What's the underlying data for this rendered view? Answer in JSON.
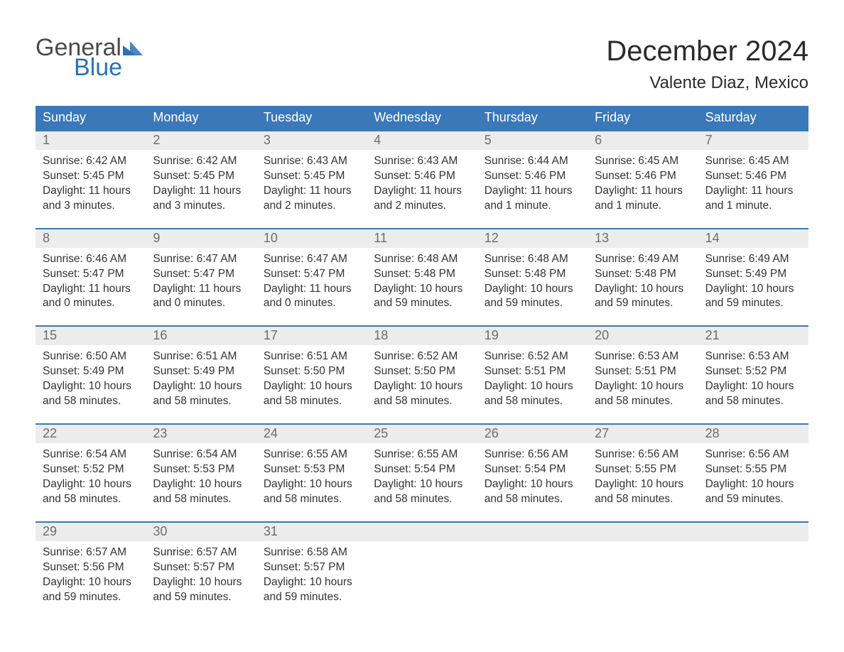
{
  "brand": {
    "line1": "General",
    "line2": "Blue",
    "triangle_color": "#2a71b8"
  },
  "title": {
    "month": "December 2024",
    "location": "Valente Diaz, Mexico"
  },
  "colors": {
    "header_bg": "#3a78b9",
    "header_text": "#ffffff",
    "daynum_bg": "#ececec",
    "daynum_text": "#6d6d6d",
    "body_text": "#333333",
    "rule": "#3a78b9",
    "page_bg": "#ffffff"
  },
  "day_headers": [
    "Sunday",
    "Monday",
    "Tuesday",
    "Wednesday",
    "Thursday",
    "Friday",
    "Saturday"
  ],
  "weeks": [
    [
      {
        "n": "1",
        "sunrise": "Sunrise: 6:42 AM",
        "sunset": "Sunset: 5:45 PM",
        "day1": "Daylight: 11 hours",
        "day2": "and 3 minutes."
      },
      {
        "n": "2",
        "sunrise": "Sunrise: 6:42 AM",
        "sunset": "Sunset: 5:45 PM",
        "day1": "Daylight: 11 hours",
        "day2": "and 3 minutes."
      },
      {
        "n": "3",
        "sunrise": "Sunrise: 6:43 AM",
        "sunset": "Sunset: 5:45 PM",
        "day1": "Daylight: 11 hours",
        "day2": "and 2 minutes."
      },
      {
        "n": "4",
        "sunrise": "Sunrise: 6:43 AM",
        "sunset": "Sunset: 5:46 PM",
        "day1": "Daylight: 11 hours",
        "day2": "and 2 minutes."
      },
      {
        "n": "5",
        "sunrise": "Sunrise: 6:44 AM",
        "sunset": "Sunset: 5:46 PM",
        "day1": "Daylight: 11 hours",
        "day2": "and 1 minute."
      },
      {
        "n": "6",
        "sunrise": "Sunrise: 6:45 AM",
        "sunset": "Sunset: 5:46 PM",
        "day1": "Daylight: 11 hours",
        "day2": "and 1 minute."
      },
      {
        "n": "7",
        "sunrise": "Sunrise: 6:45 AM",
        "sunset": "Sunset: 5:46 PM",
        "day1": "Daylight: 11 hours",
        "day2": "and 1 minute."
      }
    ],
    [
      {
        "n": "8",
        "sunrise": "Sunrise: 6:46 AM",
        "sunset": "Sunset: 5:47 PM",
        "day1": "Daylight: 11 hours",
        "day2": "and 0 minutes."
      },
      {
        "n": "9",
        "sunrise": "Sunrise: 6:47 AM",
        "sunset": "Sunset: 5:47 PM",
        "day1": "Daylight: 11 hours",
        "day2": "and 0 minutes."
      },
      {
        "n": "10",
        "sunrise": "Sunrise: 6:47 AM",
        "sunset": "Sunset: 5:47 PM",
        "day1": "Daylight: 11 hours",
        "day2": "and 0 minutes."
      },
      {
        "n": "11",
        "sunrise": "Sunrise: 6:48 AM",
        "sunset": "Sunset: 5:48 PM",
        "day1": "Daylight: 10 hours",
        "day2": "and 59 minutes."
      },
      {
        "n": "12",
        "sunrise": "Sunrise: 6:48 AM",
        "sunset": "Sunset: 5:48 PM",
        "day1": "Daylight: 10 hours",
        "day2": "and 59 minutes."
      },
      {
        "n": "13",
        "sunrise": "Sunrise: 6:49 AM",
        "sunset": "Sunset: 5:48 PM",
        "day1": "Daylight: 10 hours",
        "day2": "and 59 minutes."
      },
      {
        "n": "14",
        "sunrise": "Sunrise: 6:49 AM",
        "sunset": "Sunset: 5:49 PM",
        "day1": "Daylight: 10 hours",
        "day2": "and 59 minutes."
      }
    ],
    [
      {
        "n": "15",
        "sunrise": "Sunrise: 6:50 AM",
        "sunset": "Sunset: 5:49 PM",
        "day1": "Daylight: 10 hours",
        "day2": "and 58 minutes."
      },
      {
        "n": "16",
        "sunrise": "Sunrise: 6:51 AM",
        "sunset": "Sunset: 5:49 PM",
        "day1": "Daylight: 10 hours",
        "day2": "and 58 minutes."
      },
      {
        "n": "17",
        "sunrise": "Sunrise: 6:51 AM",
        "sunset": "Sunset: 5:50 PM",
        "day1": "Daylight: 10 hours",
        "day2": "and 58 minutes."
      },
      {
        "n": "18",
        "sunrise": "Sunrise: 6:52 AM",
        "sunset": "Sunset: 5:50 PM",
        "day1": "Daylight: 10 hours",
        "day2": "and 58 minutes."
      },
      {
        "n": "19",
        "sunrise": "Sunrise: 6:52 AM",
        "sunset": "Sunset: 5:51 PM",
        "day1": "Daylight: 10 hours",
        "day2": "and 58 minutes."
      },
      {
        "n": "20",
        "sunrise": "Sunrise: 6:53 AM",
        "sunset": "Sunset: 5:51 PM",
        "day1": "Daylight: 10 hours",
        "day2": "and 58 minutes."
      },
      {
        "n": "21",
        "sunrise": "Sunrise: 6:53 AM",
        "sunset": "Sunset: 5:52 PM",
        "day1": "Daylight: 10 hours",
        "day2": "and 58 minutes."
      }
    ],
    [
      {
        "n": "22",
        "sunrise": "Sunrise: 6:54 AM",
        "sunset": "Sunset: 5:52 PM",
        "day1": "Daylight: 10 hours",
        "day2": "and 58 minutes."
      },
      {
        "n": "23",
        "sunrise": "Sunrise: 6:54 AM",
        "sunset": "Sunset: 5:53 PM",
        "day1": "Daylight: 10 hours",
        "day2": "and 58 minutes."
      },
      {
        "n": "24",
        "sunrise": "Sunrise: 6:55 AM",
        "sunset": "Sunset: 5:53 PM",
        "day1": "Daylight: 10 hours",
        "day2": "and 58 minutes."
      },
      {
        "n": "25",
        "sunrise": "Sunrise: 6:55 AM",
        "sunset": "Sunset: 5:54 PM",
        "day1": "Daylight: 10 hours",
        "day2": "and 58 minutes."
      },
      {
        "n": "26",
        "sunrise": "Sunrise: 6:56 AM",
        "sunset": "Sunset: 5:54 PM",
        "day1": "Daylight: 10 hours",
        "day2": "and 58 minutes."
      },
      {
        "n": "27",
        "sunrise": "Sunrise: 6:56 AM",
        "sunset": "Sunset: 5:55 PM",
        "day1": "Daylight: 10 hours",
        "day2": "and 58 minutes."
      },
      {
        "n": "28",
        "sunrise": "Sunrise: 6:56 AM",
        "sunset": "Sunset: 5:55 PM",
        "day1": "Daylight: 10 hours",
        "day2": "and 59 minutes."
      }
    ],
    [
      {
        "n": "29",
        "sunrise": "Sunrise: 6:57 AM",
        "sunset": "Sunset: 5:56 PM",
        "day1": "Daylight: 10 hours",
        "day2": "and 59 minutes."
      },
      {
        "n": "30",
        "sunrise": "Sunrise: 6:57 AM",
        "sunset": "Sunset: 5:57 PM",
        "day1": "Daylight: 10 hours",
        "day2": "and 59 minutes."
      },
      {
        "n": "31",
        "sunrise": "Sunrise: 6:58 AM",
        "sunset": "Sunset: 5:57 PM",
        "day1": "Daylight: 10 hours",
        "day2": "and 59 minutes."
      },
      null,
      null,
      null,
      null
    ]
  ]
}
